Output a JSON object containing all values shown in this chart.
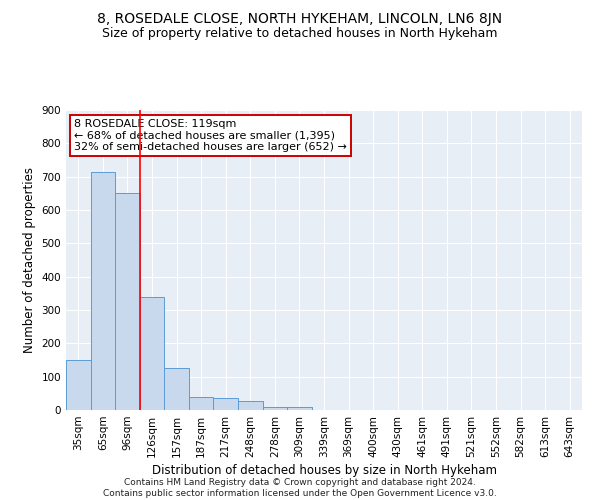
{
  "title": "8, ROSEDALE CLOSE, NORTH HYKEHAM, LINCOLN, LN6 8JN",
  "subtitle": "Size of property relative to detached houses in North Hykeham",
  "xlabel": "Distribution of detached houses by size in North Hykeham",
  "ylabel": "Number of detached properties",
  "categories": [
    "35sqm",
    "65sqm",
    "96sqm",
    "126sqm",
    "157sqm",
    "187sqm",
    "217sqm",
    "248sqm",
    "278sqm",
    "309sqm",
    "339sqm",
    "369sqm",
    "400sqm",
    "430sqm",
    "461sqm",
    "491sqm",
    "521sqm",
    "552sqm",
    "582sqm",
    "613sqm",
    "643sqm"
  ],
  "values": [
    150,
    715,
    650,
    340,
    125,
    40,
    35,
    28,
    10,
    8,
    0,
    0,
    0,
    0,
    0,
    0,
    0,
    0,
    0,
    0,
    0
  ],
  "bar_color": "#c9d9ed",
  "bar_edge_color": "#5b9bd5",
  "red_line_x": 2.5,
  "annotation_line1": "8 ROSEDALE CLOSE: 119sqm",
  "annotation_line2": "← 68% of detached houses are smaller (1,395)",
  "annotation_line3": "32% of semi-detached houses are larger (652) →",
  "annotation_box_color": "#ffffff",
  "annotation_box_edge_color": "#cc0000",
  "ylim": [
    0,
    900
  ],
  "yticks": [
    0,
    100,
    200,
    300,
    400,
    500,
    600,
    700,
    800,
    900
  ],
  "plot_background": "#e8eef5",
  "footer": "Contains HM Land Registry data © Crown copyright and database right 2024.\nContains public sector information licensed under the Open Government Licence v3.0.",
  "title_fontsize": 10,
  "subtitle_fontsize": 9,
  "xlabel_fontsize": 8.5,
  "ylabel_fontsize": 8.5,
  "tick_fontsize": 7.5,
  "annotation_fontsize": 8,
  "footer_fontsize": 6.5
}
